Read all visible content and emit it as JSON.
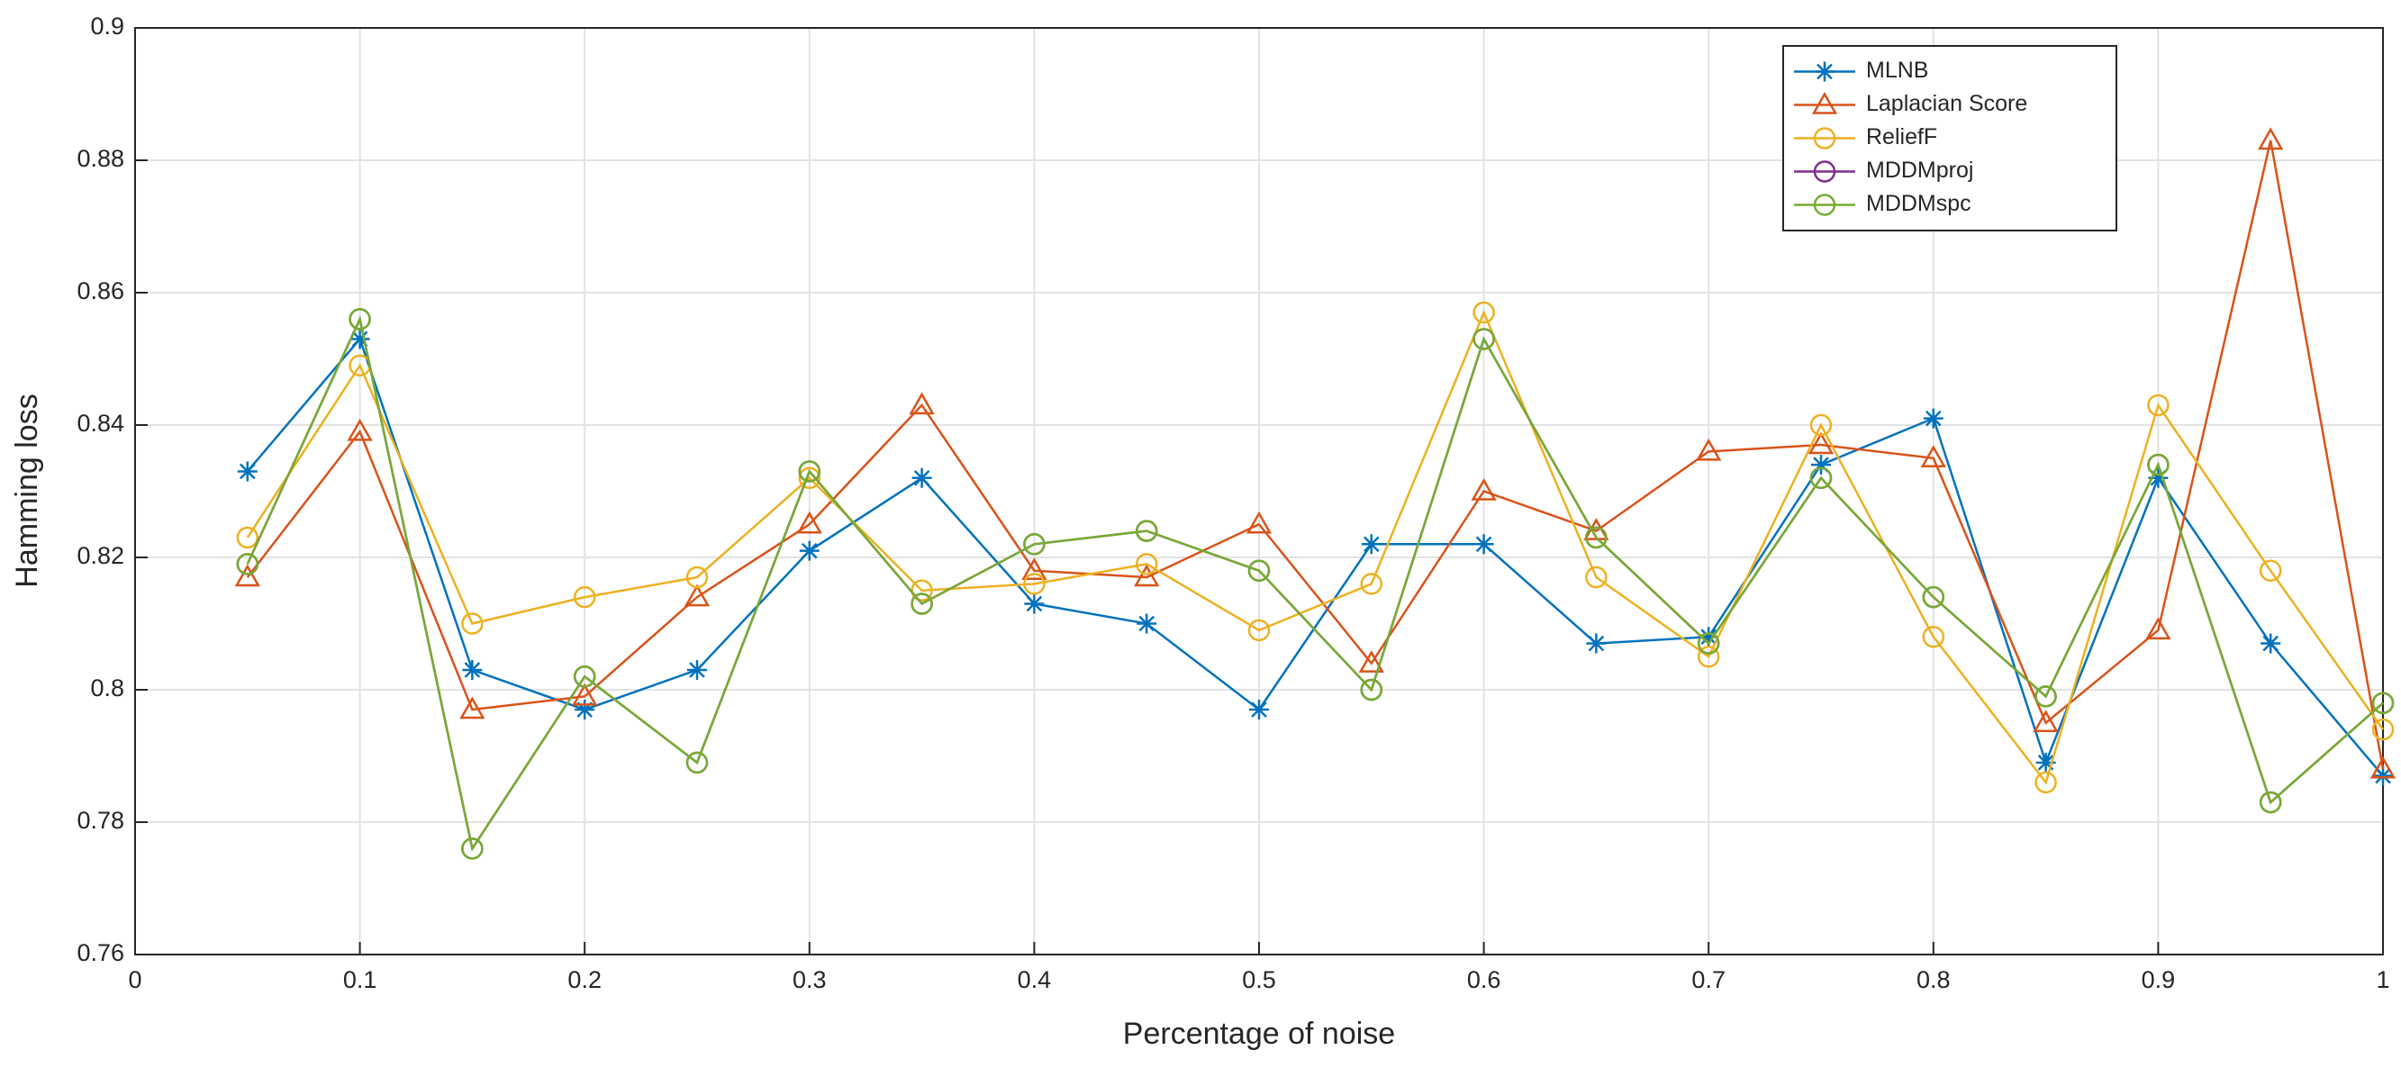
{
  "chart_data": {
    "type": "line",
    "xlabel": "Percentage of noise",
    "ylabel": "Hamming loss",
    "x": [
      0.05,
      0.1,
      0.15,
      0.2,
      0.25,
      0.3,
      0.35,
      0.4,
      0.45,
      0.5,
      0.55,
      0.6,
      0.65,
      0.7,
      0.75,
      0.8,
      0.85,
      0.9,
      0.95,
      1
    ],
    "series": [
      {
        "name": "MLNB",
        "color": "#0072bd",
        "marker": "star",
        "values": [
          0.833,
          0.853,
          0.803,
          0.797,
          0.803,
          0.821,
          0.832,
          0.813,
          0.81,
          0.797,
          0.822,
          0.822,
          0.807,
          0.808,
          0.834,
          0.841,
          0.789,
          0.832,
          0.807,
          0.787
        ]
      },
      {
        "name": "Laplacian Score",
        "color": "#d95319",
        "marker": "triangle",
        "values": [
          0.817,
          0.839,
          0.797,
          0.799,
          0.814,
          0.825,
          0.843,
          0.818,
          0.817,
          0.825,
          0.804,
          0.83,
          0.824,
          0.836,
          0.837,
          0.835,
          0.795,
          0.809,
          0.883,
          0.788
        ]
      },
      {
        "name": "ReliefF",
        "color": "#edb120",
        "marker": "circle",
        "values": [
          0.823,
          0.849,
          0.81,
          0.814,
          0.817,
          0.832,
          0.815,
          0.816,
          0.819,
          0.809,
          0.816,
          0.857,
          0.817,
          0.805,
          0.84,
          0.808,
          0.786,
          0.843,
          0.818,
          0.794
        ]
      },
      {
        "name": "MDDMproj",
        "color": "#7e2f8e",
        "marker": "circle",
        "values": [
          0.819,
          0.856,
          0.776,
          0.802,
          0.789,
          0.833,
          0.813,
          0.822,
          0.824,
          0.818,
          0.8,
          0.853,
          0.823,
          0.807,
          0.832,
          0.814,
          0.799,
          0.834,
          0.783,
          0.798
        ]
      },
      {
        "name": "MDDMspc",
        "color": "#77ac30",
        "marker": "circle",
        "values": [
          0.819,
          0.856,
          0.776,
          0.802,
          0.789,
          0.833,
          0.813,
          0.822,
          0.824,
          0.818,
          0.8,
          0.853,
          0.823,
          0.807,
          0.832,
          0.814,
          0.799,
          0.834,
          0.783,
          0.798
        ]
      }
    ],
    "xlim": [
      0,
      1
    ],
    "xticks": [
      0,
      0.1,
      0.2,
      0.3,
      0.4,
      0.5,
      0.6,
      0.7,
      0.8,
      0.9,
      1
    ],
    "ylim": [
      0.76,
      0.9
    ],
    "yticks": [
      0.76,
      0.78,
      0.8,
      0.82,
      0.84,
      0.86,
      0.88,
      0.9
    ],
    "grid": true,
    "legend": "upper right"
  }
}
